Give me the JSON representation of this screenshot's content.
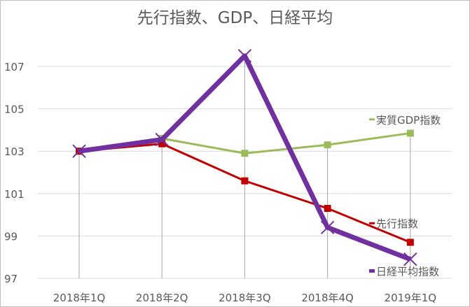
{
  "chart_data": {
    "type": "line",
    "title": "先行指数、GDP、日経平均",
    "categories": [
      "2018年1Q",
      "2018年2Q",
      "2018年3Q",
      "2018年4Q",
      "2019年1Q"
    ],
    "ylim": [
      97,
      107
    ],
    "yticks": [
      97,
      99,
      101,
      103,
      105,
      107
    ],
    "grid": true,
    "legend": "inline-right",
    "series": [
      {
        "name": "実質GDP指数",
        "color": "#9bbb59",
        "marker": "square",
        "values": [
          103.0,
          103.6,
          102.9,
          103.3,
          103.85
        ]
      },
      {
        "name": "先行指数",
        "color": "#c00000",
        "marker": "square",
        "values": [
          103.0,
          103.35,
          101.6,
          100.3,
          98.7
        ]
      },
      {
        "name": "日経平均指数",
        "color": "#7030a0",
        "marker": "x",
        "values": [
          103.0,
          103.55,
          107.5,
          99.4,
          97.9
        ]
      }
    ]
  }
}
